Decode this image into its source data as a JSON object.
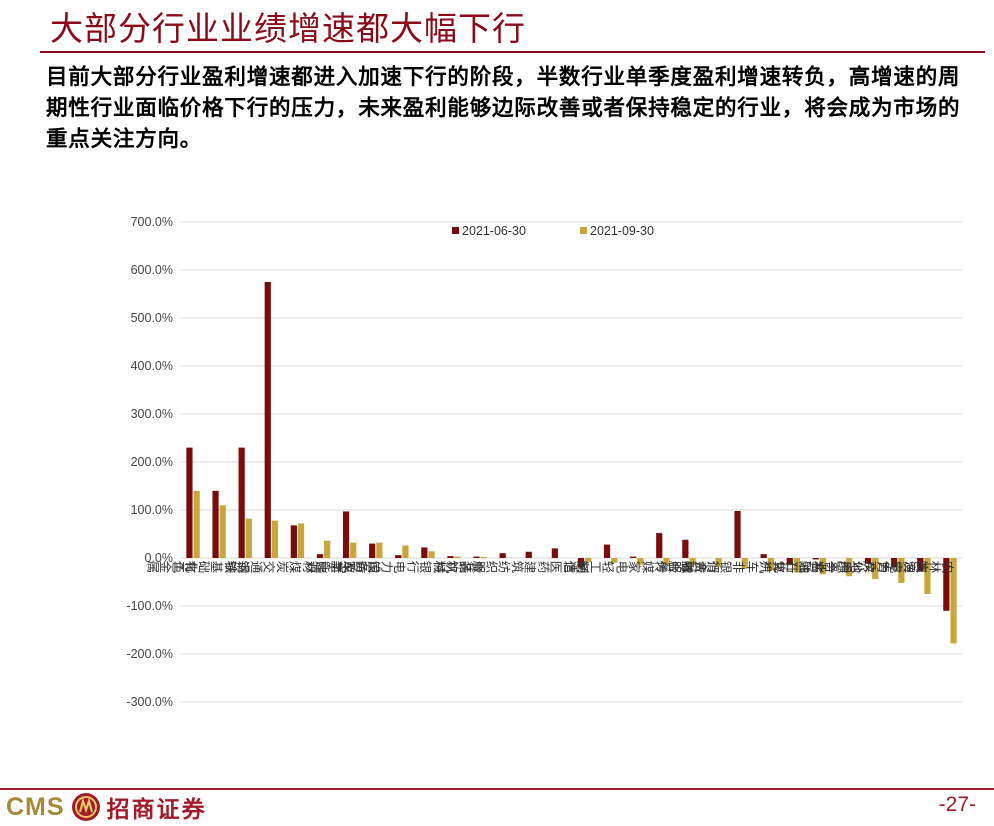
{
  "header": {
    "title": "大部分行业业绩增速都大幅下行"
  },
  "summary": {
    "text": "目前大部分行业盈利增速都进入加速下行的阶段，半数行业单季度盈利增速转负，高增速的周期性行业面临价格下行的压力，未来盈利能够边际改善或者保持稳定的行业，将会成为市场的重点关注方向。"
  },
  "footer": {
    "logo_text": "CMS",
    "logo_cn": "招商证券",
    "page": "-27-"
  },
  "colors": {
    "brand": "#8b0a1a",
    "series1": "#7b0c0c",
    "series2": "#c9a63c",
    "gold": "#a8893a"
  },
  "chart_data": {
    "type": "bar",
    "title": "",
    "xlabel": "",
    "ylabel": "",
    "ylim": [
      -300,
      700
    ],
    "yticks": [
      -300,
      -200,
      -100,
      0,
      100,
      200,
      300,
      400,
      500,
      600,
      700
    ],
    "ytick_labels": [
      "-300.0%",
      "-200.0%",
      "-100.0%",
      "0.0%",
      "100.0%",
      "200.0%",
      "300.0%",
      "400.0%",
      "500.0%",
      "600.0%",
      "700.0%"
    ],
    "grid": true,
    "legend_position": "top-center",
    "categories": [
      "有色金属",
      "基础化工",
      "钢铁",
      "交通运输",
      "煤炭",
      "建材",
      "电子",
      "国防军工",
      "电力设备及新能源",
      "银行",
      "机械",
      "食品饮料",
      "纺织服装",
      "建筑",
      "医药",
      "通信",
      "轻工制造",
      "家电",
      "传媒",
      "综合",
      "消费者服务",
      "非银行金融",
      "汽车",
      "计算机",
      "石油石化",
      "综合金融",
      "房地产",
      "电力及公用事业",
      "商贸零售",
      "农林牧渔"
    ],
    "series": [
      {
        "name": "2021-06-30",
        "values": [
          230,
          140,
          230,
          575,
          68,
          8,
          97,
          30,
          6,
          22,
          4,
          3,
          10,
          13,
          20,
          -20,
          28,
          3,
          52,
          38,
          0,
          98,
          8,
          -14,
          -3,
          0,
          -12,
          -18,
          -28,
          -110
        ]
      },
      {
        "name": "2021-09-30",
        "values": [
          140,
          110,
          82,
          78,
          72,
          36,
          32,
          32,
          26,
          14,
          3,
          2,
          0,
          0,
          0,
          -8,
          -10,
          -14,
          -14,
          -14,
          -18,
          -22,
          -26,
          -30,
          -34,
          -38,
          -44,
          -52,
          -75,
          -178
        ]
      }
    ]
  }
}
